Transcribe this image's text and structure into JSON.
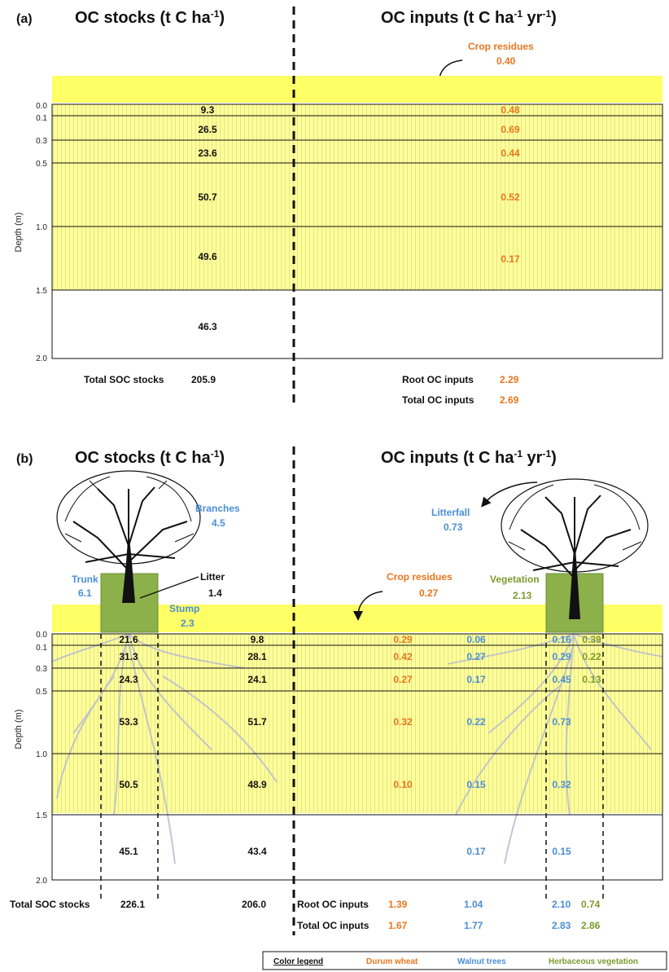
{
  "colors": {
    "durum_wheat": "#E8761E",
    "walnut_trees": "#4A8ED6",
    "herbaceous": "#7E9A2E",
    "dark": "#111111",
    "soil_fill": "#FFFF99",
    "stripe": "#E5E58A",
    "surface_band": "#FFFF66",
    "green_box": "#8CB04A"
  },
  "panel_a": {
    "tag": "(a)",
    "stocks_header": {
      "base": "OC stocks (t C ha",
      "sup": "-1",
      "end": ")"
    },
    "inputs_header": {
      "base": "OC inputs (t C ha",
      "sup1": "-1",
      "mid": " yr",
      "sup2": "-1",
      "end": ")"
    },
    "axis_label": "Depth (m)",
    "depth_ticks": [
      "0.0",
      "0.1",
      "0.3",
      "0.5",
      "1.0",
      "1.5",
      "2.0"
    ],
    "crop_residues": {
      "label": "Crop residues",
      "value": "0.40"
    },
    "stocks": [
      "9.3",
      "26.5",
      "23.6",
      "50.7",
      "49.6",
      "46.3"
    ],
    "root_inputs": [
      "0.48",
      "0.69",
      "0.44",
      "0.52",
      "0.17"
    ],
    "totals": {
      "soc_label": "Total SOC stocks",
      "soc_value": "205.9",
      "root_label": "Root OC inputs",
      "root_value": "2.29",
      "total_label": "Total OC inputs",
      "total_value": "2.69"
    }
  },
  "panel_b": {
    "tag": "(b)",
    "stocks_header": {
      "base": "OC stocks (t C ha",
      "sup": "-1",
      "end": ")"
    },
    "inputs_header": {
      "base": "OC inputs (t C ha",
      "sup1": "-1",
      "mid": " yr",
      "sup2": "-1",
      "end": ")"
    },
    "axis_label": "Depth (m)",
    "depth_ticks": [
      "0.0",
      "0.1",
      "0.3",
      "0.5",
      "1.0",
      "1.5",
      "2.0"
    ],
    "tree_labels": {
      "branches": {
        "label": "Branches",
        "value": "4.5"
      },
      "trunk": {
        "label": "Trunk",
        "value": "6.1"
      },
      "litter": {
        "label": "Litter",
        "value": "1.4"
      },
      "stump": {
        "label": "Stump",
        "value": "2.3"
      },
      "litterfall": {
        "label": "Litterfall",
        "value": "0.73"
      },
      "crop_residues": {
        "label": "Crop residues",
        "value": "0.27"
      },
      "vegetation": {
        "label": "Vegetation",
        "value": "2.13"
      }
    },
    "stocks_tree_row": [
      "21.6",
      "31.3",
      "24.3",
      "53.3",
      "50.5",
      "45.1"
    ],
    "stocks_alley": [
      "9.8",
      "28.1",
      "24.1",
      "51.7",
      "48.9",
      "43.4"
    ],
    "wheat_inputs": [
      "0.29",
      "0.42",
      "0.27",
      "0.32",
      "0.10"
    ],
    "walnut_inputs_alley": [
      "0.06",
      "0.27",
      "0.17",
      "0.22",
      "0.15",
      "0.17"
    ],
    "walnut_inputs_row": [
      "0.16",
      "0.29",
      "0.45",
      "0.73",
      "0.32",
      "0.15"
    ],
    "herb_inputs": [
      "0.39",
      "0.22",
      "0.13"
    ],
    "totals": {
      "soc_label": "Total SOC stocks",
      "soc_tree_row": "226.1",
      "soc_alley": "206.0",
      "root_label": "Root OC inputs",
      "root_wheat": "1.39",
      "root_walnut_alley": "1.04",
      "root_walnut_row": "2.10",
      "root_herb": "0.74",
      "total_label": "Total OC inputs",
      "total_wheat": "1.67",
      "total_walnut_alley": "1.77",
      "total_walnut_row": "2.83",
      "total_herb": "2.86"
    }
  },
  "legend": {
    "title": "Color legend",
    "durum_wheat": "Durum wheat",
    "walnut_trees": "Walnut trees",
    "herbaceous": "Herbaceous vegetation"
  }
}
